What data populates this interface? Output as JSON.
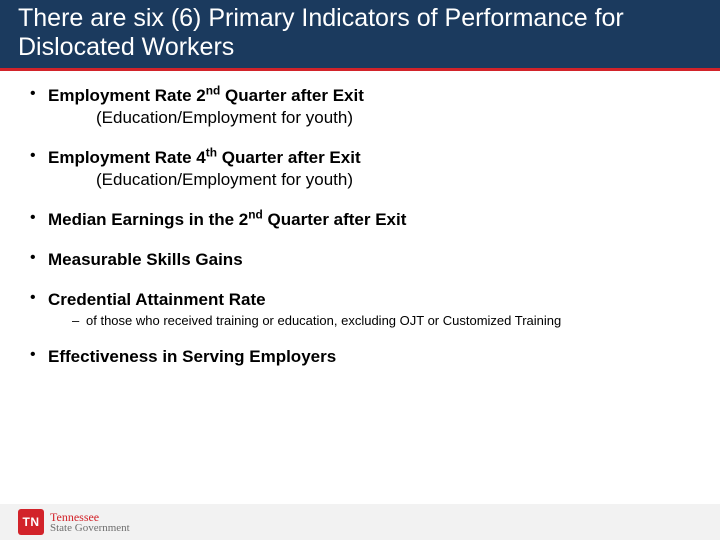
{
  "header": {
    "title_html": "There are six (6) Primary Indicators of Performance for Dislocated Workers"
  },
  "bullets": [
    {
      "bold_html": "Employment Rate 2<sup>nd</sup> Quarter after Exit",
      "sub_line": "(Education/Employment for youth)"
    },
    {
      "bold_html": "Employment Rate 4<sup>th</sup> Quarter after Exit",
      "sub_line": "(Education/Employment for youth)"
    },
    {
      "bold_html": "Median Earnings in the 2<sup>nd</sup> Quarter after Exit"
    },
    {
      "bold_html": "Measurable Skills Gains"
    },
    {
      "bold_html": "Credential Attainment Rate",
      "dash_sub": "of those who received training or education, excluding OJT or Customized Training"
    },
    {
      "bold_html": "Effectiveness in Serving Employers"
    }
  ],
  "footer": {
    "badge": "TN",
    "line1": "Tennessee",
    "line2": "State Government"
  },
  "colors": {
    "header_bg": "#1b3a5e",
    "accent_red": "#d2232a",
    "footer_bg": "#f2f2f2",
    "footer_sub": "#6f6f6f"
  }
}
